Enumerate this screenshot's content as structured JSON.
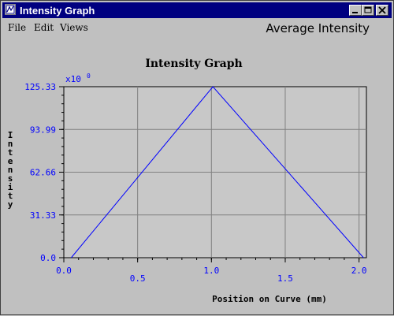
{
  "window": {
    "title": "Intensity Graph"
  },
  "menu": {
    "items": [
      "File",
      "Edit",
      "Views"
    ],
    "heading": "Average Intensity"
  },
  "chart_data": {
    "type": "line",
    "title": "Intensity Graph",
    "xlabel": "Position on Curve (mm)",
    "ylabel": "Intensity",
    "scale_label": "x10",
    "scale_exponent": "0",
    "xlim": [
      0,
      2.05
    ],
    "ylim": [
      0,
      125.33
    ],
    "x_ticks": [
      "0.0",
      "0.5",
      "1.0",
      "1.5",
      "2.0"
    ],
    "y_ticks": [
      "0.0",
      "31.33",
      "62.66",
      "93.99",
      "125.33"
    ],
    "grid": true,
    "series": [
      {
        "x": [
          0.05,
          1.01,
          2.03
        ],
        "y": [
          0,
          125.33,
          0
        ]
      }
    ],
    "colors": {
      "line": "#0000ff",
      "labels": "#0000ff",
      "plot_bg": "#c8c8c8",
      "grid": "#808080"
    }
  }
}
